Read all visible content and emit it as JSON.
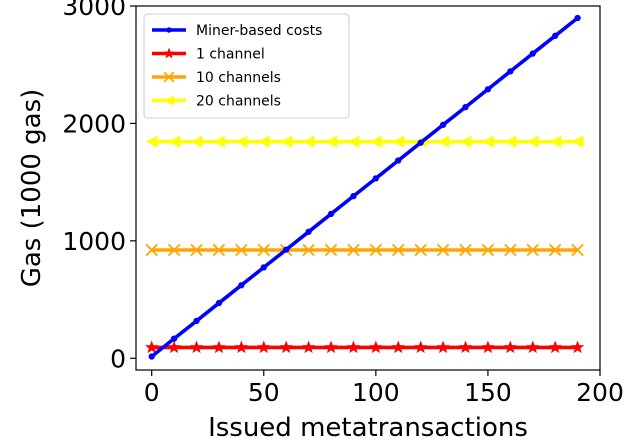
{
  "chart_data": {
    "type": "line",
    "title": "",
    "xlabel": "Issued metatransactions",
    "ylabel": "Gas (1000 gas)",
    "xlim": [
      -7,
      200
    ],
    "ylim": [
      -100,
      3000
    ],
    "xticks": [
      0,
      50,
      100,
      150,
      200
    ],
    "yticks": [
      0,
      1000,
      2000,
      3000
    ],
    "grid": false,
    "legend_position": "upper-left",
    "x": [
      0,
      10,
      20,
      30,
      40,
      50,
      60,
      70,
      80,
      90,
      100,
      110,
      120,
      130,
      140,
      150,
      160,
      170,
      180,
      190
    ],
    "series": [
      {
        "name": "Miner-based costs",
        "color": "#0000ff",
        "marker": "dot",
        "values": [
          15,
          167,
          318,
          470,
          622,
          774,
          925,
          1077,
          1229,
          1381,
          1532,
          1684,
          1836,
          1988,
          2139,
          2291,
          2443,
          2595,
          2746,
          2898
        ]
      },
      {
        "name": "1 channel",
        "color": "#ff0000",
        "marker": "star",
        "values": [
          92,
          92,
          92,
          92,
          92,
          92,
          92,
          92,
          92,
          92,
          92,
          92,
          92,
          92,
          92,
          92,
          92,
          92,
          92,
          92
        ]
      },
      {
        "name": "10 channels",
        "color": "#ffa500",
        "marker": "x",
        "values": [
          922,
          922,
          922,
          922,
          922,
          922,
          922,
          922,
          922,
          922,
          922,
          922,
          922,
          922,
          922,
          922,
          922,
          922,
          922,
          922
        ]
      },
      {
        "name": "20 channels",
        "color": "#ffff00",
        "marker": "triangle-left",
        "values": [
          1845,
          1845,
          1845,
          1845,
          1845,
          1845,
          1845,
          1845,
          1845,
          1845,
          1845,
          1845,
          1845,
          1845,
          1845,
          1845,
          1845,
          1845,
          1845,
          1845
        ]
      }
    ]
  }
}
